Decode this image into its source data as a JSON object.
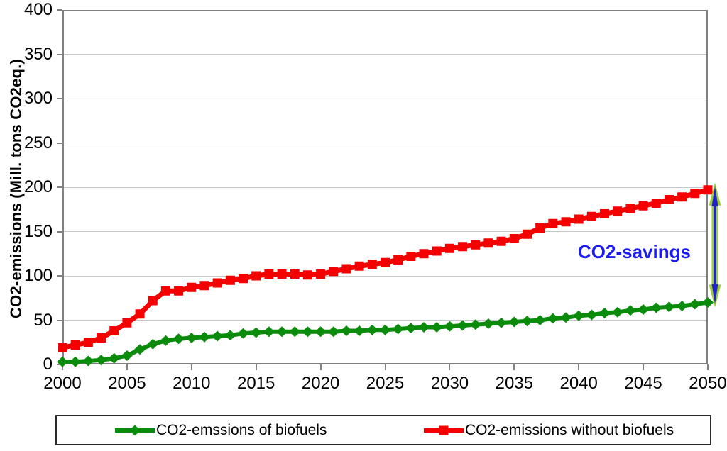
{
  "chart_data": {
    "type": "line",
    "title": "",
    "xlabel": "",
    "ylabel": "CO2-emissions (Mill. tons CO2eq.)",
    "xlim": [
      2000,
      2050
    ],
    "ylim": [
      0,
      400
    ],
    "x_ticks": [
      2000,
      2005,
      2010,
      2015,
      2020,
      2025,
      2030,
      2035,
      2040,
      2045,
      2050
    ],
    "y_ticks": [
      0,
      50,
      100,
      150,
      200,
      250,
      300,
      350,
      400
    ],
    "grid": "horizontal",
    "legend_position": "bottom",
    "x_start": 2000,
    "x_step": 1,
    "series": [
      {
        "name": "CO2-emssions of biofuels",
        "color": "#0b8b0b",
        "marker": "diamond",
        "values": [
          3,
          3,
          4,
          5,
          7,
          10,
          17,
          23,
          27,
          29,
          30,
          31,
          32,
          33,
          35,
          36,
          37,
          37,
          37,
          37,
          37,
          37,
          38,
          38,
          39,
          39,
          40,
          41,
          42,
          42,
          43,
          44,
          45,
          46,
          47,
          48,
          49,
          50,
          52,
          53,
          55,
          56,
          58,
          59,
          61,
          62,
          64,
          65,
          66,
          68,
          70
        ]
      },
      {
        "name": "CO2-emissions without biofuels",
        "color": "#f40000",
        "marker": "square",
        "values": [
          19,
          22,
          25,
          30,
          38,
          47,
          57,
          72,
          83,
          83,
          87,
          89,
          92,
          95,
          97,
          100,
          102,
          102,
          102,
          101,
          102,
          105,
          108,
          111,
          113,
          115,
          118,
          122,
          125,
          128,
          131,
          133,
          135,
          137,
          139,
          142,
          147,
          154,
          159,
          161,
          164,
          167,
          170,
          173,
          176,
          179,
          182,
          186,
          189,
          193,
          197
        ]
      }
    ],
    "annotation": {
      "text": "CO2-savings",
      "color": "#1b1bf0",
      "arrow_outline_color": "#9acd32",
      "arrow_inner_color": "#2222cc"
    }
  },
  "style_colors": {
    "gridline": "#c6c6c6",
    "plot_border": "#808080",
    "text": "#000000"
  }
}
